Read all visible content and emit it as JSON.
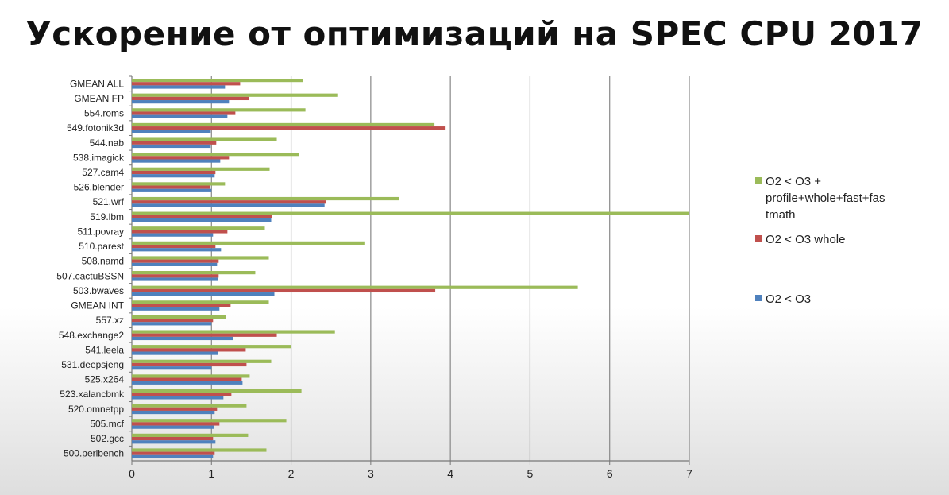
{
  "title": "Ускорение от оптимизаций на SPEC CPU 2017",
  "colors": {
    "series_green": "#9BBB59",
    "series_red": "#C0504D",
    "series_blue": "#4F81BD",
    "grid": "#888888"
  },
  "chart_data": {
    "type": "bar",
    "orientation": "horizontal",
    "title": "Ускорение от оптимизаций на SPEC CPU 2017",
    "xlim": [
      0,
      7
    ],
    "xticks": [
      "0",
      "1",
      "2",
      "3",
      "4",
      "5",
      "6",
      "7"
    ],
    "grid": true,
    "legend_position": "right",
    "categories": [
      "GMEAN ALL",
      "GMEAN FP",
      "554.roms",
      "549.fotonik3d",
      "544.nab",
      "538.imagick",
      "527.cam4",
      "526.blender",
      "521.wrf",
      "519.lbm",
      "511.povray",
      "510.parest",
      "508.namd",
      "507.cactuBSSN",
      "503.bwaves",
      "GMEAN INT",
      "557.xz",
      "548.exchange2",
      "541.leela",
      "531.deepsjeng",
      "525.x264",
      "523.xalancbmk",
      "520.omnetpp",
      "505.mcf",
      "502.gcc",
      "500.perlbench"
    ],
    "series": [
      {
        "name": "O2 < O3 + profile+whole+fast+fastmath",
        "legend_lines": [
          "O2 < O3 +",
          "profile+whole+fast+fas",
          "tmath"
        ],
        "color": "#9BBB59",
        "values": [
          2.15,
          2.58,
          2.18,
          3.8,
          1.82,
          2.1,
          1.73,
          1.17,
          3.36,
          7.0,
          1.67,
          2.92,
          1.72,
          1.55,
          5.6,
          1.72,
          1.18,
          2.55,
          2.0,
          1.75,
          1.48,
          2.13,
          1.44,
          1.94,
          1.46,
          1.69
        ]
      },
      {
        "name": "O2 < O3 whole",
        "legend_lines": [
          "O2 < O3 whole"
        ],
        "color": "#C0504D",
        "values": [
          1.36,
          1.47,
          1.3,
          3.93,
          1.06,
          1.22,
          1.05,
          0.98,
          2.44,
          1.76,
          1.2,
          1.05,
          1.09,
          1.09,
          3.81,
          1.24,
          1.02,
          1.82,
          1.43,
          1.44,
          1.38,
          1.25,
          1.07,
          1.1,
          1.02,
          1.04
        ]
      },
      {
        "name": "O2 < O3",
        "legend_lines": [
          "O2 < O3"
        ],
        "color": "#4F81BD",
        "values": [
          1.17,
          1.22,
          1.2,
          0.99,
          0.99,
          1.11,
          1.04,
          1.0,
          2.42,
          1.75,
          1.02,
          1.12,
          1.07,
          1.08,
          1.79,
          1.1,
          1.0,
          1.27,
          1.08,
          1.0,
          1.39,
          1.15,
          1.04,
          1.03,
          1.05,
          1.02
        ]
      }
    ]
  }
}
